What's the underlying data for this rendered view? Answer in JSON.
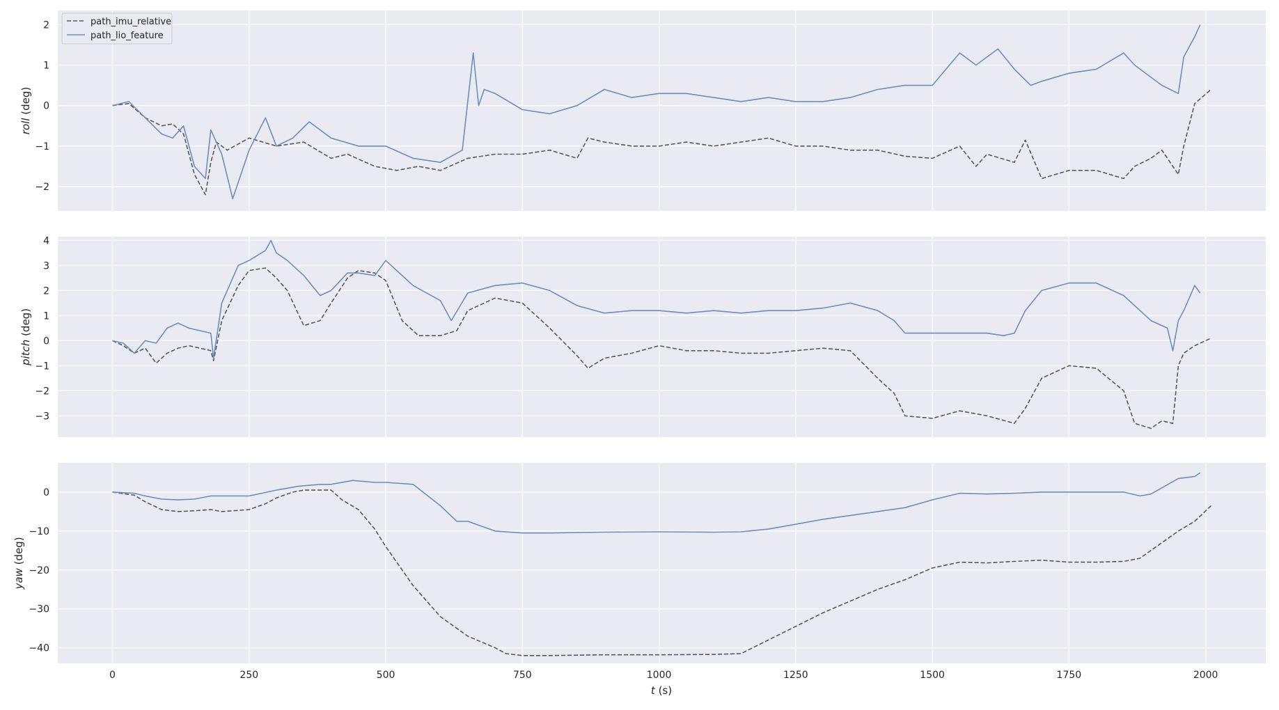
{
  "chart_data": {
    "type": "line",
    "shared_x_label": {
      "var": "t",
      "unit": " (s)"
    },
    "x_ticks": [
      0,
      250,
      500,
      750,
      1000,
      1250,
      1500,
      1750,
      2000
    ],
    "xlim": [
      -100,
      2110
    ],
    "grid": true,
    "legend": {
      "placement": "top-left",
      "entries": [
        {
          "name": "path_imu_relative",
          "style": "dashed",
          "color": "#595959"
        },
        {
          "name": "path_lio_feature",
          "style": "solid",
          "color": "#6c8ebf"
        }
      ]
    },
    "colors": {
      "background": "#eaeaf2",
      "grid": "#ffffff",
      "imu": "#595959",
      "lio": "#6c8ebf"
    },
    "panels": [
      {
        "ylabel_var": "roll",
        "ylabel_unit": " (deg)",
        "ylim": [
          -2.6,
          2.35
        ],
        "y_ticks": [
          -2,
          -1,
          0,
          1,
          2
        ],
        "y_tick_labels": [
          "−2",
          "−1",
          "0",
          "1",
          "2"
        ],
        "series": [
          {
            "name": "path_imu_relative",
            "x": [
              0,
              30,
              60,
              90,
              110,
              130,
              150,
              170,
              180,
              190,
              210,
              250,
              300,
              350,
              400,
              430,
              480,
              520,
              560,
              600,
              650,
              700,
              750,
              800,
              850,
              870,
              900,
              950,
              1000,
              1050,
              1100,
              1150,
              1200,
              1250,
              1300,
              1350,
              1400,
              1450,
              1500,
              1550,
              1580,
              1600,
              1650,
              1670,
              1700,
              1750,
              1800,
              1850,
              1870,
              1900,
              1920,
              1950,
              1960,
              1980,
              2010
            ],
            "y": [
              0.0,
              0.05,
              -0.3,
              -0.5,
              -0.45,
              -0.7,
              -1.7,
              -2.2,
              -1.4,
              -0.9,
              -1.1,
              -0.8,
              -1.0,
              -0.9,
              -1.3,
              -1.2,
              -1.5,
              -1.6,
              -1.5,
              -1.6,
              -1.3,
              -1.2,
              -1.2,
              -1.1,
              -1.3,
              -0.8,
              -0.9,
              -1.0,
              -1.0,
              -0.9,
              -1.0,
              -0.9,
              -0.8,
              -1.0,
              -1.0,
              -1.1,
              -1.1,
              -1.25,
              -1.3,
              -1.0,
              -1.5,
              -1.2,
              -1.4,
              -0.85,
              -1.8,
              -1.6,
              -1.6,
              -1.8,
              -1.5,
              -1.3,
              -1.1,
              -1.7,
              -1.0,
              0.05,
              0.4
            ]
          },
          {
            "name": "path_lio_feature",
            "x": [
              0,
              30,
              60,
              90,
              110,
              130,
              150,
              170,
              180,
              200,
              220,
              250,
              280,
              300,
              330,
              360,
              400,
              450,
              500,
              550,
              600,
              640,
              660,
              670,
              680,
              700,
              750,
              800,
              850,
              900,
              950,
              1000,
              1050,
              1100,
              1150,
              1200,
              1250,
              1300,
              1350,
              1400,
              1450,
              1500,
              1550,
              1580,
              1600,
              1620,
              1650,
              1680,
              1700,
              1750,
              1800,
              1850,
              1870,
              1900,
              1920,
              1950,
              1960,
              1980,
              1990
            ],
            "y": [
              0.0,
              0.1,
              -0.3,
              -0.7,
              -0.8,
              -0.5,
              -1.5,
              -1.8,
              -0.6,
              -1.2,
              -2.3,
              -1.1,
              -0.3,
              -1.0,
              -0.8,
              -0.4,
              -0.8,
              -1.0,
              -1.0,
              -1.3,
              -1.4,
              -1.1,
              1.3,
              0.0,
              0.4,
              0.3,
              -0.1,
              -0.2,
              0.0,
              0.4,
              0.2,
              0.3,
              0.3,
              0.2,
              0.1,
              0.2,
              0.1,
              0.1,
              0.2,
              0.4,
              0.5,
              0.5,
              1.3,
              1.0,
              1.2,
              1.4,
              0.9,
              0.5,
              0.6,
              0.8,
              0.9,
              1.3,
              1.0,
              0.7,
              0.5,
              0.3,
              1.2,
              1.7,
              2.0
            ]
          }
        ]
      },
      {
        "ylabel_var": "pitch",
        "ylabel_unit": " (deg)",
        "ylim": [
          -3.85,
          4.15
        ],
        "y_ticks": [
          -3,
          -2,
          -1,
          0,
          1,
          2,
          3,
          4
        ],
        "y_tick_labels": [
          "−3",
          "−2",
          "−1",
          "0",
          "1",
          "2",
          "3",
          "4"
        ],
        "series": [
          {
            "name": "path_imu_relative",
            "x": [
              0,
              20,
              40,
              60,
              80,
              100,
              120,
              140,
              160,
              180,
              185,
              200,
              230,
              250,
              280,
              300,
              320,
              350,
              380,
              400,
              430,
              450,
              480,
              500,
              530,
              560,
              600,
              630,
              650,
              700,
              750,
              800,
              850,
              870,
              900,
              950,
              1000,
              1050,
              1100,
              1150,
              1200,
              1250,
              1300,
              1350,
              1400,
              1430,
              1450,
              1500,
              1550,
              1600,
              1650,
              1670,
              1700,
              1750,
              1800,
              1850,
              1870,
              1900,
              1920,
              1940,
              1950,
              1960,
              1980,
              2000,
              2010
            ],
            "y": [
              0.0,
              -0.2,
              -0.5,
              -0.3,
              -0.9,
              -0.5,
              -0.3,
              -0.2,
              -0.3,
              -0.4,
              -0.8,
              0.8,
              2.2,
              2.8,
              2.9,
              2.5,
              2.0,
              0.6,
              0.8,
              1.5,
              2.5,
              2.8,
              2.7,
              2.4,
              0.8,
              0.2,
              0.2,
              0.4,
              1.2,
              1.7,
              1.5,
              0.5,
              -0.6,
              -1.1,
              -0.7,
              -0.5,
              -0.2,
              -0.4,
              -0.4,
              -0.5,
              -0.5,
              -0.4,
              -0.3,
              -0.4,
              -1.5,
              -2.1,
              -3.0,
              -3.1,
              -2.8,
              -3.0,
              -3.3,
              -2.7,
              -1.5,
              -1.0,
              -1.1,
              -2.0,
              -3.3,
              -3.5,
              -3.2,
              -3.3,
              -1.0,
              -0.5,
              -0.2,
              0.0,
              0.1
            ]
          },
          {
            "name": "path_lio_feature",
            "x": [
              0,
              20,
              40,
              60,
              80,
              100,
              120,
              140,
              160,
              180,
              185,
              200,
              230,
              250,
              280,
              290,
              300,
              320,
              350,
              380,
              400,
              430,
              450,
              480,
              500,
              520,
              550,
              600,
              620,
              650,
              700,
              750,
              800,
              850,
              900,
              950,
              1000,
              1050,
              1100,
              1150,
              1200,
              1250,
              1300,
              1350,
              1400,
              1430,
              1450,
              1500,
              1550,
              1600,
              1630,
              1650,
              1670,
              1700,
              1750,
              1800,
              1850,
              1900,
              1930,
              1940,
              1950,
              1960,
              1980,
              1990
            ],
            "y": [
              0.0,
              -0.1,
              -0.5,
              0.0,
              -0.1,
              0.5,
              0.7,
              0.5,
              0.4,
              0.3,
              -0.7,
              1.5,
              3.0,
              3.2,
              3.6,
              4.0,
              3.5,
              3.2,
              2.6,
              1.8,
              2.0,
              2.7,
              2.7,
              2.6,
              3.2,
              2.8,
              2.2,
              1.6,
              0.8,
              1.9,
              2.2,
              2.3,
              2.0,
              1.4,
              1.1,
              1.2,
              1.2,
              1.1,
              1.2,
              1.1,
              1.2,
              1.2,
              1.3,
              1.5,
              1.2,
              0.8,
              0.3,
              0.3,
              0.3,
              0.3,
              0.2,
              0.3,
              1.2,
              2.0,
              2.3,
              2.3,
              1.8,
              0.8,
              0.5,
              -0.4,
              0.8,
              1.2,
              2.2,
              1.9
            ]
          }
        ]
      },
      {
        "ylabel_var": "yaw",
        "ylabel_unit": " (deg)",
        "ylim": [
          -44,
          7.5
        ],
        "y_ticks": [
          -40,
          -30,
          -20,
          -10,
          0
        ],
        "y_tick_labels": [
          "−40",
          "−30",
          "−20",
          "−10",
          "0"
        ],
        "series": [
          {
            "name": "path_imu_relative",
            "x": [
              0,
              40,
              60,
              90,
              120,
              150,
              180,
              200,
              250,
              280,
              300,
              330,
              350,
              400,
              420,
              450,
              480,
              500,
              550,
              600,
              650,
              700,
              720,
              750,
              800,
              900,
              1000,
              1100,
              1150,
              1200,
              1300,
              1400,
              1450,
              1500,
              1550,
              1600,
              1650,
              1700,
              1750,
              1800,
              1850,
              1880,
              1900,
              1950,
              1980,
              2010
            ],
            "y": [
              0.0,
              -0.8,
              -2.5,
              -4.5,
              -5.0,
              -4.8,
              -4.5,
              -5.0,
              -4.5,
              -3.0,
              -1.5,
              0.0,
              0.5,
              0.5,
              -2.0,
              -4.5,
              -9.5,
              -14.0,
              -24.0,
              -32.0,
              -37.0,
              -40.0,
              -41.5,
              -42.0,
              -42.0,
              -41.8,
              -41.8,
              -41.7,
              -41.5,
              -38.0,
              -31.0,
              -25.0,
              -22.5,
              -19.5,
              -18.0,
              -18.2,
              -17.8,
              -17.5,
              -18.0,
              -18.0,
              -17.8,
              -17.0,
              -15.0,
              -10.0,
              -7.5,
              -3.5
            ]
          },
          {
            "name": "path_lio_feature",
            "x": [
              0,
              40,
              60,
              90,
              120,
              150,
              180,
              220,
              250,
              300,
              340,
              380,
              400,
              440,
              480,
              500,
              550,
              600,
              630,
              650,
              700,
              750,
              800,
              900,
              1000,
              1100,
              1150,
              1200,
              1300,
              1400,
              1450,
              1500,
              1550,
              1600,
              1650,
              1700,
              1750,
              1800,
              1850,
              1880,
              1900,
              1950,
              1980,
              1990
            ],
            "y": [
              0.0,
              -0.3,
              -1.0,
              -1.8,
              -2.0,
              -1.8,
              -1.0,
              -1.0,
              -1.0,
              0.5,
              1.5,
              2.0,
              2.0,
              3.0,
              2.5,
              2.5,
              2.0,
              -3.5,
              -7.5,
              -7.5,
              -10.0,
              -10.5,
              -10.5,
              -10.3,
              -10.2,
              -10.3,
              -10.2,
              -9.5,
              -7.0,
              -5.0,
              -4.0,
              -2.0,
              -0.3,
              -0.5,
              -0.3,
              0.0,
              0.0,
              0.0,
              0.0,
              -1.0,
              -0.5,
              3.5,
              4.0,
              5.0
            ]
          }
        ]
      }
    ]
  }
}
